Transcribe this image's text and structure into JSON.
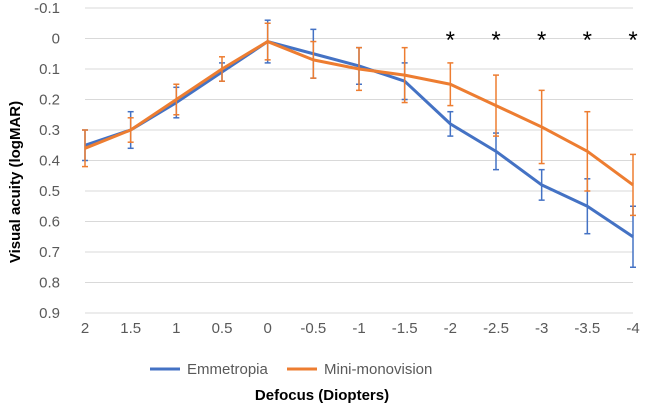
{
  "chart_data": {
    "type": "line",
    "xlabel": "Defocus  (Diopters)",
    "ylabel": "Visual  acuity  (logMAR)",
    "x": [
      "2",
      "1.5",
      "1",
      "0.5",
      "0",
      "-0.5",
      "-1",
      "-1.5",
      "-2",
      "-2.5",
      "-3",
      "-3.5",
      "-4"
    ],
    "y_ticks": [
      -0.1,
      0,
      0.1,
      0.2,
      0.3,
      0.4,
      0.5,
      0.6,
      0.7,
      0.8,
      0.9
    ],
    "ylim": [
      -0.1,
      0.9
    ],
    "y_inverted": true,
    "grid": true,
    "legend_position": "bottom",
    "series": [
      {
        "name": "Emmetropia",
        "color": "#4472c4",
        "values": [
          0.35,
          0.3,
          0.21,
          0.11,
          0.01,
          0.05,
          0.09,
          0.14,
          0.28,
          0.37,
          0.48,
          0.55,
          0.65
        ],
        "errors": [
          0.05,
          0.06,
          0.05,
          0.03,
          0.07,
          0.08,
          0.06,
          0.06,
          0.04,
          0.06,
          0.05,
          0.09,
          0.1
        ]
      },
      {
        "name": "Mini-monovision",
        "color": "#ed7d31",
        "values": [
          0.36,
          0.3,
          0.2,
          0.1,
          0.01,
          0.07,
          0.1,
          0.12,
          0.15,
          0.22,
          0.29,
          0.37,
          0.48
        ],
        "errors": [
          0.06,
          0.04,
          0.05,
          0.04,
          0.06,
          0.06,
          0.07,
          0.09,
          0.07,
          0.1,
          0.12,
          0.13,
          0.1
        ]
      }
    ],
    "significance_marker": "*",
    "significance_at": [
      "-2",
      "-2.5",
      "-3",
      "-3.5",
      "-4"
    ]
  }
}
